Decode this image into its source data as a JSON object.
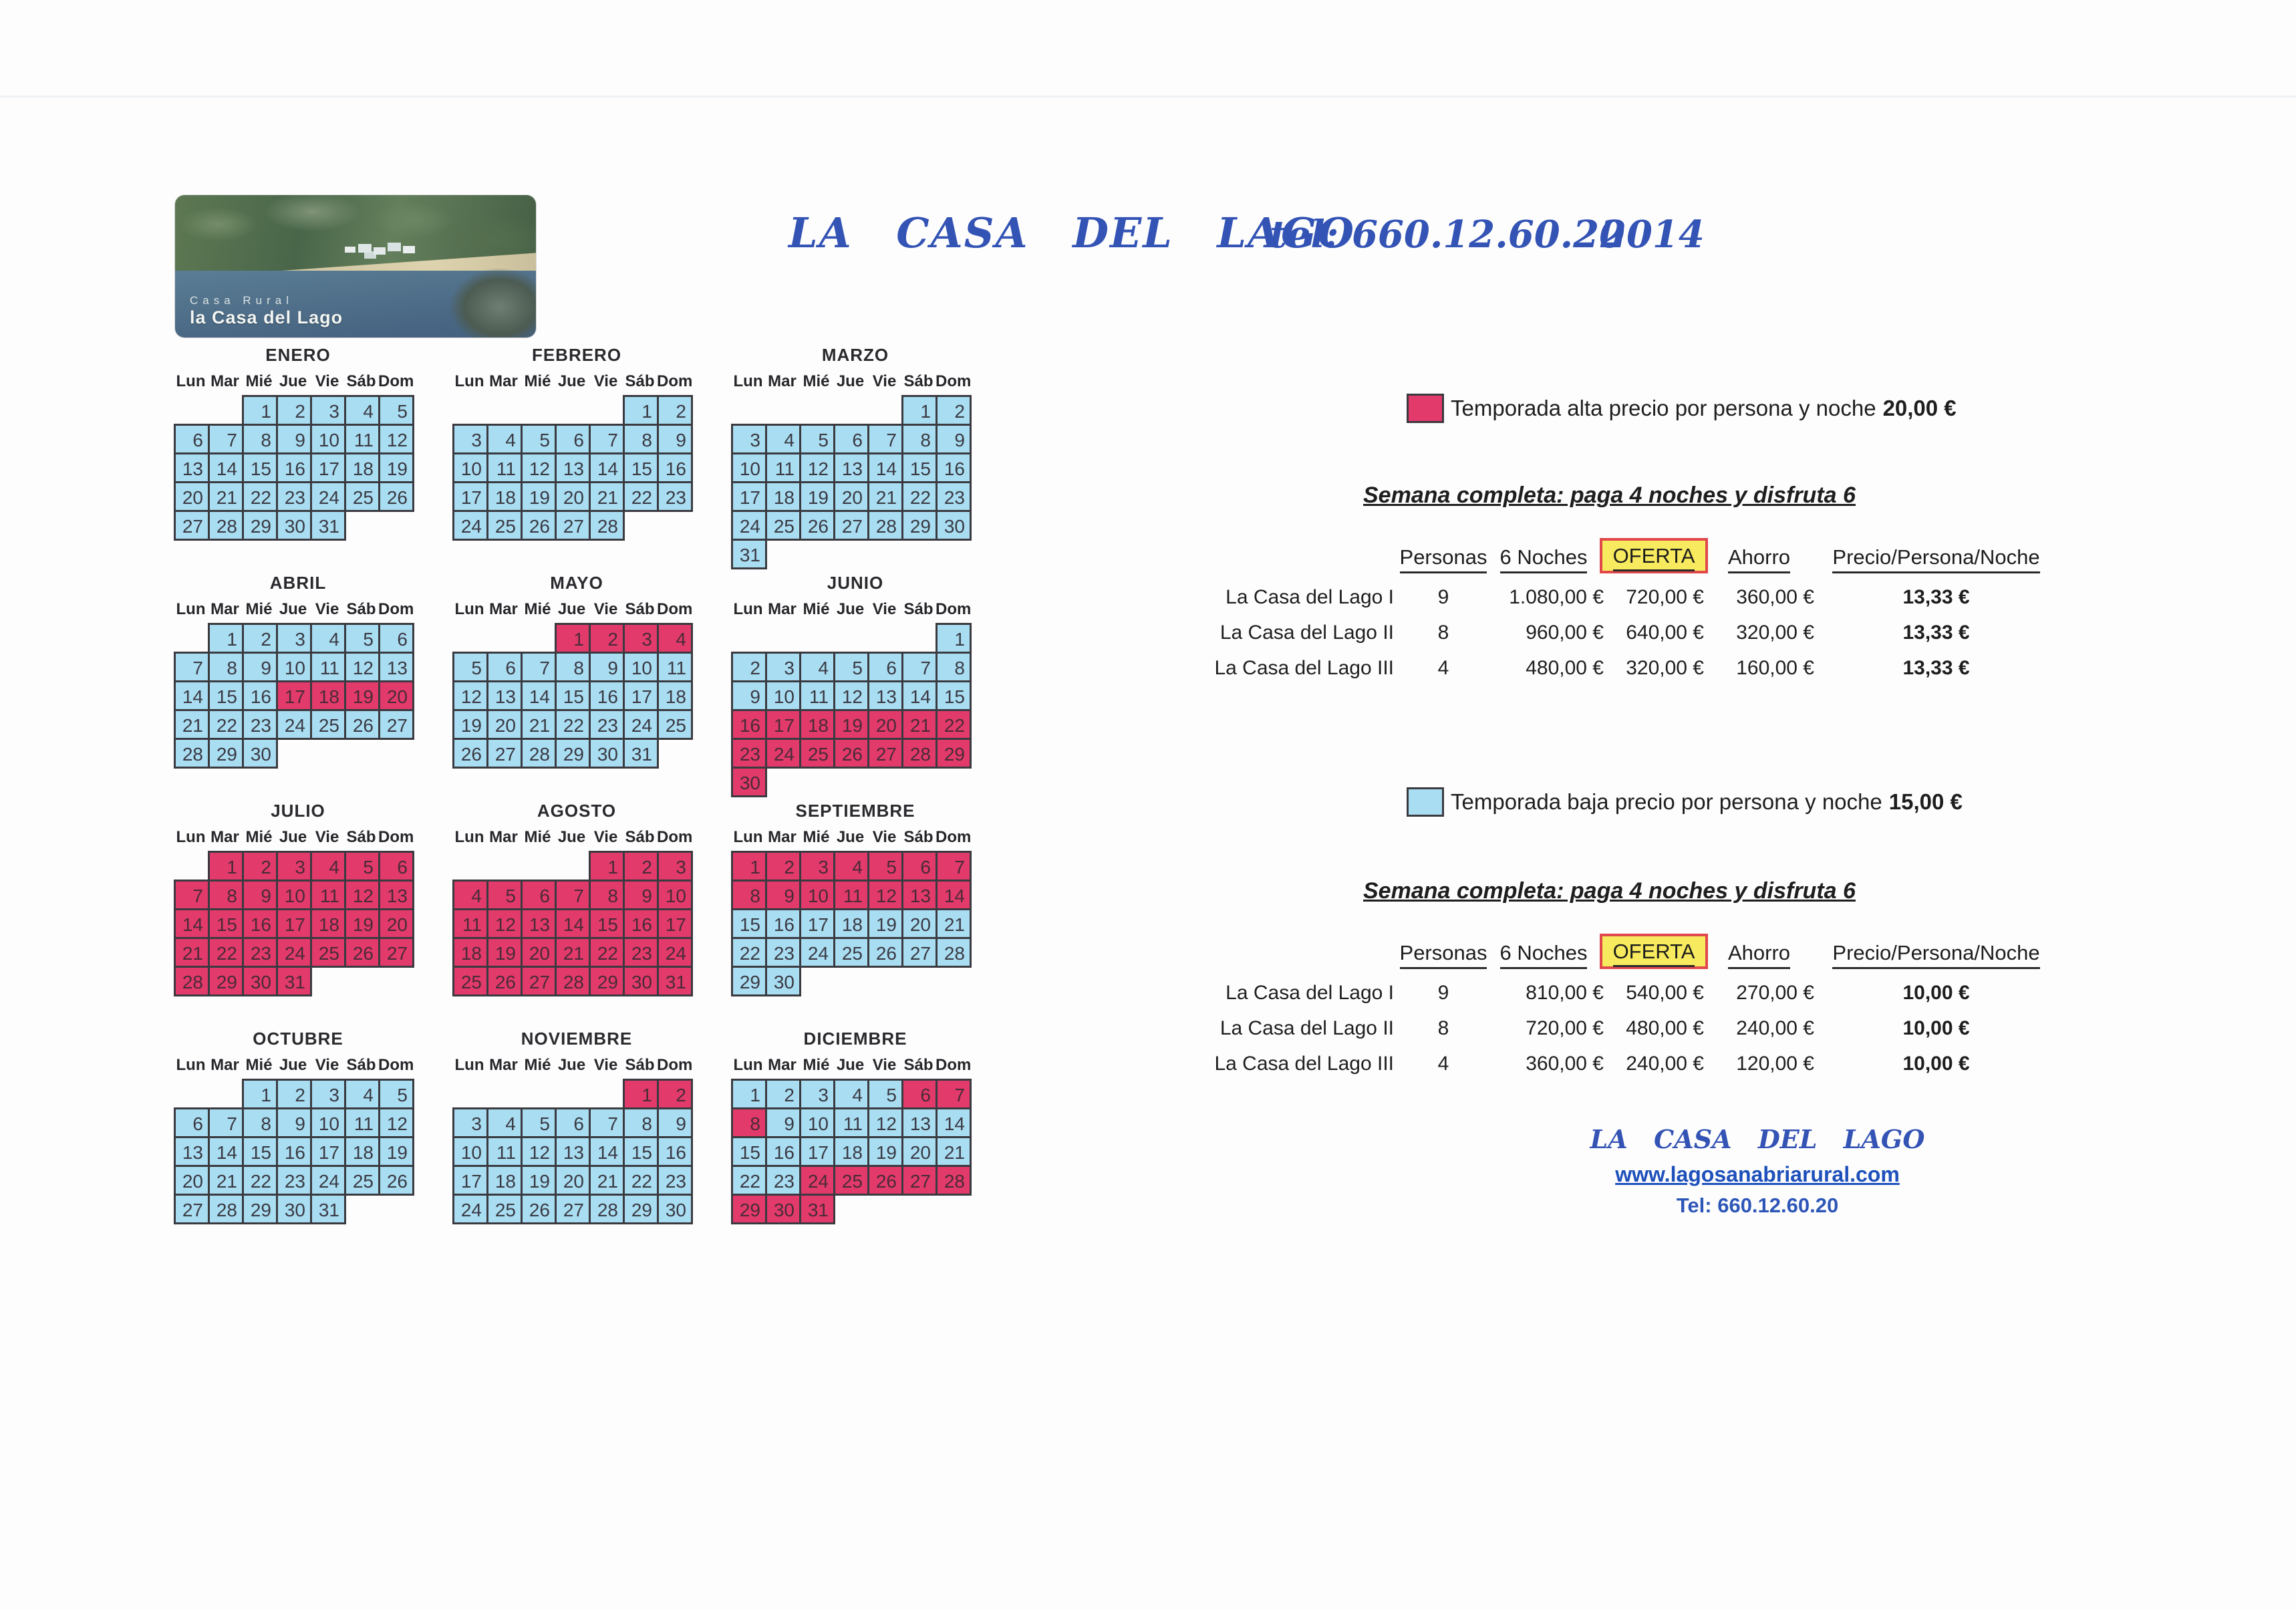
{
  "header": {
    "title": "LA CASA DEL LAGO",
    "tel": "tel: 660.12.60.20",
    "year": "2014"
  },
  "logo": {
    "line1": "Casa Rural",
    "line2": "la Casa del Lago"
  },
  "colors": {
    "alta": "#e23a6b",
    "baja": "#a9ddf1",
    "cell_border": "#3a3a40",
    "oferta_fill": "#f8ea5e",
    "oferta_border": "#e0484c",
    "script_blue": "#3353b5"
  },
  "calendar": {
    "weekdays": [
      "Lun",
      "Mar",
      "Mié",
      "Jue",
      "Vie",
      "Sáb",
      "Dom"
    ],
    "months": [
      {
        "name": "ENERO",
        "start": 2,
        "days": 31,
        "alta": []
      },
      {
        "name": "FEBRERO",
        "start": 5,
        "days": 28,
        "alta": []
      },
      {
        "name": "MARZO",
        "start": 5,
        "days": 31,
        "alta": []
      },
      {
        "name": "ABRIL",
        "start": 1,
        "days": 30,
        "alta": [
          [
            17,
            20
          ]
        ]
      },
      {
        "name": "MAYO",
        "start": 3,
        "days": 31,
        "alta": [
          [
            1,
            4
          ]
        ]
      },
      {
        "name": "JUNIO",
        "start": 6,
        "days": 30,
        "alta": [
          [
            16,
            30
          ]
        ]
      },
      {
        "name": "JULIO",
        "start": 1,
        "days": 31,
        "alta": [
          [
            1,
            31
          ]
        ]
      },
      {
        "name": "AGOSTO",
        "start": 4,
        "days": 31,
        "alta": [
          [
            1,
            31
          ]
        ]
      },
      {
        "name": "SEPTIEMBRE",
        "start": 0,
        "days": 30,
        "alta": [
          [
            1,
            14
          ]
        ]
      },
      {
        "name": "OCTUBRE",
        "start": 2,
        "days": 31,
        "alta": []
      },
      {
        "name": "NOVIEMBRE",
        "start": 5,
        "days": 30,
        "alta": [
          [
            1,
            2
          ]
        ]
      },
      {
        "name": "DICIEMBRE",
        "start": 0,
        "days": 31,
        "alta": [
          [
            6,
            8
          ],
          [
            24,
            31
          ]
        ]
      }
    ]
  },
  "tables": [
    {
      "legend": {
        "label": "Temporada alta precio por persona y noche",
        "price": "20,00 €"
      },
      "title": "Semana completa: paga 4 noches y disfruta 6",
      "columns": [
        "Personas",
        "6 Noches",
        "OFERTA",
        "Ahorro",
        "Precio/Persona/Noche"
      ],
      "rows": [
        [
          "La Casa del Lago I",
          "9",
          "1.080,00 €",
          "720,00 €",
          "360,00 €",
          "13,33 €"
        ],
        [
          "La Casa del Lago II",
          "8",
          "960,00 €",
          "640,00 €",
          "320,00 €",
          "13,33 €"
        ],
        [
          "La Casa del Lago III",
          "4",
          "480,00 €",
          "320,00 €",
          "160,00 €",
          "13,33 €"
        ]
      ]
    },
    {
      "legend": {
        "label": "Temporada baja precio por persona y noche",
        "price": "15,00 €"
      },
      "title": "Semana completa: paga 4 noches y disfruta 6",
      "columns": [
        "Personas",
        "6 Noches",
        "OFERTA",
        "Ahorro",
        "Precio/Persona/Noche"
      ],
      "rows": [
        [
          "La Casa del Lago I",
          "9",
          "810,00 €",
          "540,00 €",
          "270,00 €",
          "10,00 €"
        ],
        [
          "La Casa del Lago II",
          "8",
          "720,00 €",
          "480,00 €",
          "240,00 €",
          "10,00 €"
        ],
        [
          "La Casa del Lago III",
          "4",
          "360,00 €",
          "240,00 €",
          "120,00 €",
          "10,00 €"
        ]
      ]
    }
  ],
  "footer": {
    "brand": "LA CASA DEL LAGO",
    "url": "www.lagosanabriarural.com",
    "tel": "Tel: 660.12.60.20"
  }
}
